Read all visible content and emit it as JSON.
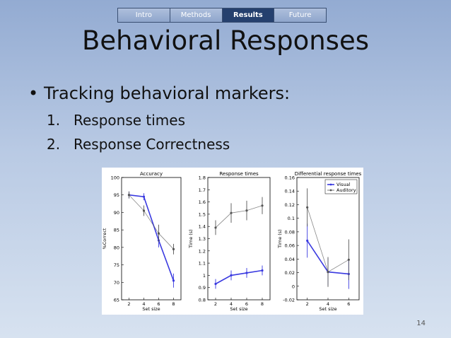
{
  "nav": {
    "tabs": [
      {
        "label": "Intro",
        "active": false
      },
      {
        "label": "Methods",
        "active": false
      },
      {
        "label": "Results",
        "active": true
      },
      {
        "label": "Future",
        "active": false
      }
    ]
  },
  "slide": {
    "title": "Behavioral Responses",
    "bullet": "Tracking behavioral markers:",
    "items": [
      {
        "num": "1.",
        "text": "Response times"
      },
      {
        "num": "2.",
        "text": "Response Correctness"
      }
    ],
    "page_number": "14"
  },
  "colors": {
    "visual": "#3a3ae0",
    "auditory": "#555555",
    "active_tab": "#25406e"
  },
  "chart_data": [
    {
      "type": "line",
      "title": "Accuracy",
      "xlabel": "Set size",
      "ylabel": "%Correct",
      "x": [
        2,
        4,
        6,
        8
      ],
      "xticks": [
        2,
        4,
        6,
        8
      ],
      "ylim": [
        65,
        100
      ],
      "yticks": [
        65,
        70,
        75,
        80,
        85,
        90,
        95,
        100
      ],
      "series": [
        {
          "name": "Visual",
          "values": [
            95,
            94.5,
            82,
            70.5
          ],
          "errors": [
            1,
            1,
            2,
            2
          ]
        },
        {
          "name": "Auditory",
          "values": [
            95,
            90.5,
            84,
            79.5
          ],
          "errors": [
            1,
            1.5,
            2.5,
            1.5
          ]
        }
      ]
    },
    {
      "type": "line",
      "title": "Response times",
      "xlabel": "Set size",
      "ylabel": "Time (s)",
      "x": [
        2,
        4,
        6,
        8
      ],
      "xticks": [
        2,
        4,
        6,
        8
      ],
      "ylim": [
        0.8,
        1.8
      ],
      "yticks": [
        "0.8",
        "0.9",
        "1",
        "1.1",
        "1.2",
        "1.3",
        "1.4",
        "1.5",
        "1.6",
        "1.7",
        "1.8"
      ],
      "series": [
        {
          "name": "Visual",
          "values": [
            0.93,
            1.0,
            1.02,
            1.04
          ],
          "errors": [
            0.04,
            0.04,
            0.04,
            0.04
          ]
        },
        {
          "name": "Auditory",
          "values": [
            1.39,
            1.51,
            1.53,
            1.57
          ],
          "errors": [
            0.06,
            0.08,
            0.08,
            0.07
          ]
        }
      ]
    },
    {
      "type": "line",
      "title": "Differential response times",
      "xlabel": "Set size",
      "ylabel": "Time (s)",
      "x": [
        2,
        4,
        6
      ],
      "xticks": [
        2,
        4,
        6
      ],
      "ylim": [
        -0.02,
        0.16
      ],
      "yticks": [
        "-0.02",
        "0",
        "0.02",
        "0.04",
        "0.06",
        "0.08",
        "0.1",
        "0.12",
        "0.14",
        "0.16"
      ],
      "legend": "top-right",
      "series": [
        {
          "name": "Visual",
          "values": [
            0.067,
            0.021,
            0.018
          ],
          "errors": [
            0.025,
            0.02,
            0.022
          ]
        },
        {
          "name": "Auditory",
          "values": [
            0.116,
            0.021,
            0.039
          ],
          "errors": [
            0.028,
            0.022,
            0.03
          ]
        }
      ]
    }
  ]
}
